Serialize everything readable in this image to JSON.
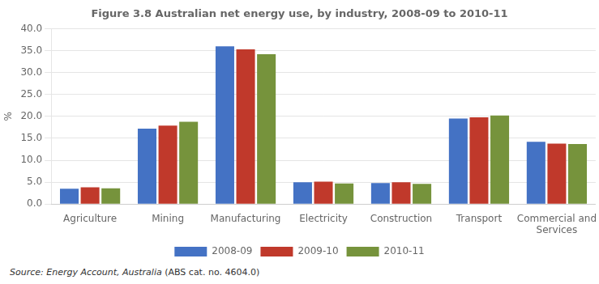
{
  "chart_data": {
    "type": "bar",
    "title": "Figure 3.8 Australian net energy use, by industry, 2008-09 to 2010-11",
    "y_label": "%",
    "categories": [
      "Agriculture",
      "Mining",
      "Manufacturing",
      "Electricity",
      "Construction",
      "Transport",
      "Commercial and\nServices"
    ],
    "series": [
      {
        "name": "2008-09",
        "color": "#4472C4",
        "values": [
          3.5,
          17.2,
          36.0,
          5.0,
          4.8,
          19.5,
          14.2
        ]
      },
      {
        "name": "2009-10",
        "color": "#C0392B",
        "values": [
          3.8,
          17.9,
          35.3,
          5.1,
          5.0,
          19.8,
          13.8
        ]
      },
      {
        "name": "2010-11",
        "color": "#76933C",
        "values": [
          3.6,
          18.8,
          34.2,
          4.7,
          4.6,
          20.2,
          13.7
        ]
      }
    ],
    "ylim": [
      0,
      40
    ],
    "yticks": [
      {
        "value": 0,
        "label": "0.0"
      },
      {
        "value": 5,
        "label": "5.0"
      },
      {
        "value": 10,
        "label": "10.0"
      },
      {
        "value": 15,
        "label": "15.0"
      },
      {
        "value": 20,
        "label": "20.0"
      },
      {
        "value": 25,
        "label": "25.0"
      },
      {
        "value": 30,
        "label": "30.0"
      },
      {
        "value": 35,
        "label": "35.0"
      },
      {
        "value": 40,
        "label": "40.0"
      }
    ],
    "grid": true,
    "legend": "bottom",
    "annotations": [
      "Source: Energy Account, Australia",
      "(ABS cat. no. 4604.0)"
    ]
  }
}
